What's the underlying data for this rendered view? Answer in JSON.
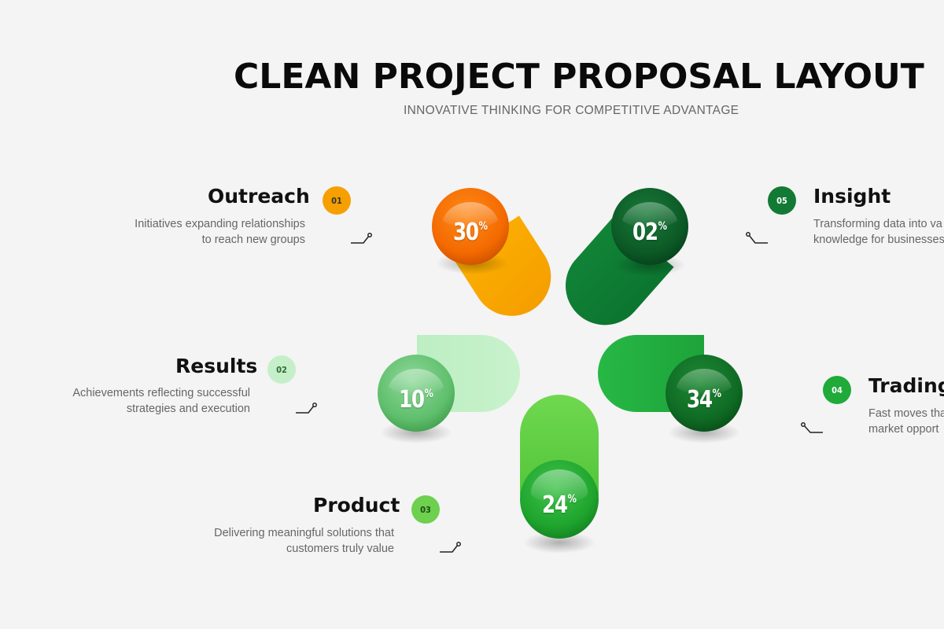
{
  "title": "CLEAN PROJECT PROPOSAL LAYOUT",
  "subtitle": "INNOVATIVE THINKING FOR COMPETITIVE ADVANTAGE",
  "items": [
    {
      "number": "01",
      "heading": "Outreach",
      "desc": [
        "Initiatives expanding relationships",
        "to reach new groups"
      ],
      "percent": "30",
      "color": "#f5a000"
    },
    {
      "number": "02",
      "heading": "Results",
      "desc": [
        "Achievements reflecting successful",
        "strategies and execution"
      ],
      "percent": "10",
      "color": "#a8e6b0"
    },
    {
      "number": "03",
      "heading": "Product",
      "desc": [
        "Delivering meaningful solutions that",
        "customers truly value"
      ],
      "percent": "24",
      "color": "#5ccf47"
    },
    {
      "number": "04",
      "heading": "Trading",
      "desc": [
        "Fast moves tha",
        "market opport"
      ],
      "percent": "34",
      "color": "#1faa3a"
    },
    {
      "number": "05",
      "heading": "Insight",
      "desc": [
        "Transforming data into va",
        "knowledge for businesses"
      ],
      "percent": "02",
      "color": "#137a35"
    }
  ],
  "percent_symbol": "%"
}
